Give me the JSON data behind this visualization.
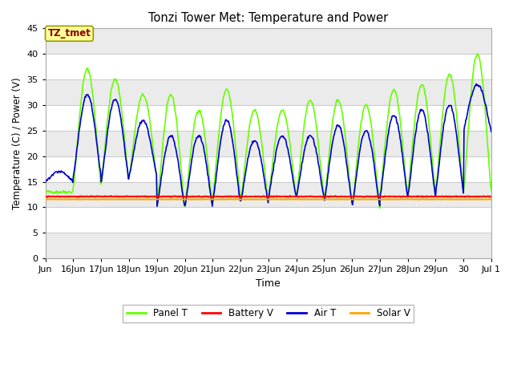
{
  "title": "Tonzi Tower Met: Temperature and Power",
  "xlabel": "Time",
  "ylabel": "Temperature (C) / Power (V)",
  "annotation_text": "TZ_tmet",
  "annotation_color": "#8B0000",
  "annotation_bg": "#FFFF99",
  "ylim": [
    0,
    45
  ],
  "yticks": [
    0,
    5,
    10,
    15,
    20,
    25,
    30,
    35,
    40,
    45
  ],
  "fig_bg": "#FFFFFF",
  "plot_bg": "#FFFFFF",
  "grid_color": "#DDDDDD",
  "colors": {
    "panel_t": "#66FF00",
    "battery_v": "#FF0000",
    "air_t": "#0000CC",
    "solar_v": "#FFA500"
  },
  "x_tick_labels": [
    "Jun",
    "16Jun",
    "17Jun",
    "18Jun",
    "19Jun",
    "20Jun",
    "21Jun",
    "22Jun",
    "23Jun",
    "24Jun",
    "25Jun",
    "26Jun",
    "27Jun",
    "28Jun",
    "29Jun",
    "30",
    "Jul 1"
  ],
  "battery_v_value": 12.1,
  "solar_v_value": 11.55,
  "panel_peaks": [
    13,
    37,
    35,
    32,
    32,
    29,
    33,
    29,
    29,
    31,
    31,
    30,
    33,
    34,
    36,
    40
  ],
  "panel_mins": [
    13,
    14,
    15,
    16,
    10,
    10,
    12,
    11,
    12,
    12,
    11,
    10,
    12,
    13,
    13,
    13
  ],
  "air_peaks": [
    17,
    32,
    31,
    27,
    24,
    24,
    27,
    23,
    24,
    24,
    26,
    25,
    28,
    29,
    30,
    34
  ],
  "air_mins": [
    15,
    16,
    15,
    16,
    10,
    10,
    11,
    11,
    12,
    12,
    11,
    10,
    12,
    12,
    13,
    25
  ],
  "legend_labels": [
    "Panel T",
    "Battery V",
    "Air T",
    "Solar V"
  ]
}
